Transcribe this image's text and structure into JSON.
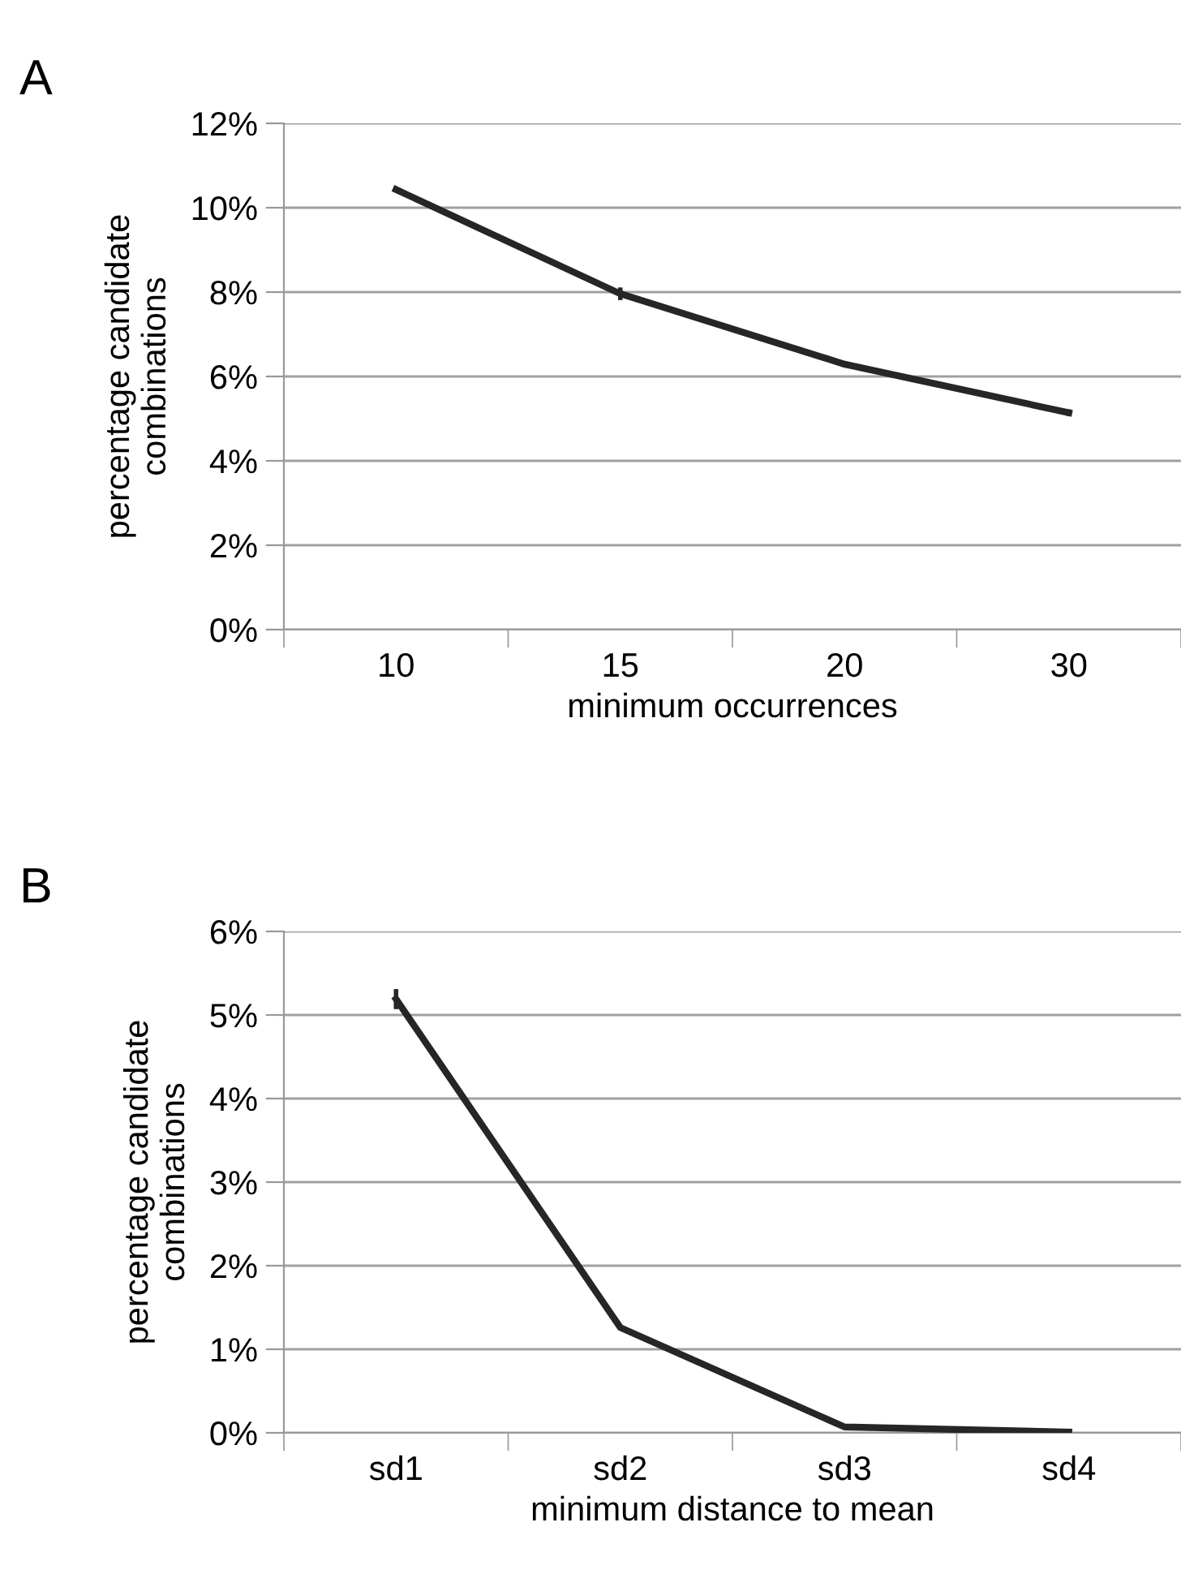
{
  "chart_data": [
    {
      "type": "line",
      "title": "A",
      "xlabel": "minimum occurrences",
      "ylabel": "percentage candidate\ncombinations",
      "categories": [
        "10",
        "15",
        "20",
        "30"
      ],
      "series": [
        {
          "color": "#262626",
          "values": [
            10.43,
            7.96,
            6.29,
            5.14
          ],
          "errors": [
            0.05,
            0.15,
            0.05,
            0.08
          ]
        }
      ],
      "ylim": [
        0,
        12
      ],
      "yticks": [
        {
          "value": 0,
          "label": "0%"
        },
        {
          "value": 2,
          "label": "2%"
        },
        {
          "value": 4,
          "label": "4%"
        },
        {
          "value": 6,
          "label": "6%"
        },
        {
          "value": 8,
          "label": "8%"
        },
        {
          "value": 10,
          "label": "10%"
        },
        {
          "value": 12,
          "label": "12%"
        }
      ],
      "grid": "y",
      "marker": "none",
      "line_style": "solid"
    },
    {
      "type": "line",
      "title": "B",
      "xlabel": "minimum distance to mean",
      "ylabel": "percentage candidate\ncombinations",
      "categories": [
        "sd1",
        "sd2",
        "sd3",
        "sd4"
      ],
      "series": [
        {
          "color": "#262626",
          "values": [
            5.19,
            1.26,
            0.07,
            0.01
          ],
          "errors": [
            0.12,
            0.03,
            0.01,
            0.01
          ]
        }
      ],
      "ylim": [
        0,
        6
      ],
      "yticks": [
        {
          "value": 0,
          "label": "0%"
        },
        {
          "value": 1,
          "label": "1%"
        },
        {
          "value": 2,
          "label": "2%"
        },
        {
          "value": 3,
          "label": "3%"
        },
        {
          "value": 4,
          "label": "4%"
        },
        {
          "value": 5,
          "label": "5%"
        },
        {
          "value": 6,
          "label": "6%"
        }
      ],
      "grid": "y",
      "marker": "none",
      "line_style": "solid"
    }
  ]
}
